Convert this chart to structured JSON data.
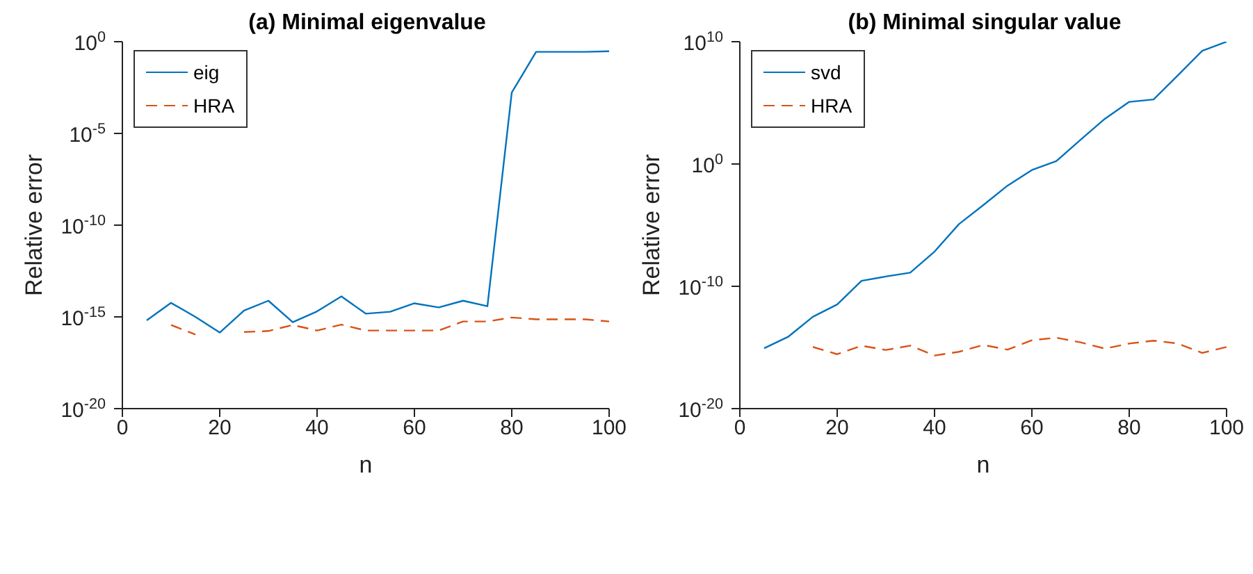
{
  "chart_data": [
    {
      "type": "line",
      "title": "(a) Minimal eigenvalue",
      "xlabel": "n",
      "ylabel": "Relative error",
      "log": "y",
      "grid": false,
      "legend": "top left",
      "x": [
        5,
        10,
        15,
        20,
        25,
        30,
        35,
        40,
        45,
        50,
        55,
        60,
        65,
        70,
        75,
        80,
        85,
        90,
        95,
        100
      ],
      "xlim": [
        0,
        100
      ],
      "xticks": [
        0,
        20,
        40,
        60,
        80,
        100
      ],
      "ylim": [
        1e-20,
        1
      ],
      "yticks": [
        {
          "value": 1e-20,
          "label": "10$^{-20}$"
        },
        {
          "value": 1e-15,
          "label": "10$^{-15}$"
        },
        {
          "value": 1e-10,
          "label": "10$^{-10}$"
        },
        {
          "value": 1e-05,
          "label": "10$^{-5}$"
        },
        {
          "value": 1,
          "label": "10$^{0}$"
        }
      ],
      "series": [
        {
          "name": "eig",
          "color": "#0072bd",
          "line_style": "solid",
          "values": [
            6.5e-16,
            5.8e-15,
            1e-15,
            1.4e-16,
            2.2e-15,
            7.6e-15,
            5.1e-16,
            2e-15,
            1.3e-14,
            1.5e-15,
            1.9e-15,
            5.5e-15,
            3.3e-15,
            7.6e-15,
            3.8e-15,
            0.0017,
            0.28,
            0.28,
            0.28,
            0.3
          ]
        },
        {
          "name": "HRA",
          "color": "#d95319",
          "line_style": "dashed",
          "values": [
            null,
            3.6e-16,
            1.1e-16,
            null,
            1.5e-16,
            1.7e-16,
            3.6e-16,
            1.8e-16,
            3.8e-16,
            1.8e-16,
            1.8e-16,
            1.8e-16,
            1.8e-16,
            5.6e-16,
            5.6e-16,
            9.3e-16,
            7.4e-16,
            7.4e-16,
            7.4e-16,
            5.6e-16
          ]
        }
      ]
    },
    {
      "type": "line",
      "title": "(b) Minimal singular value",
      "xlabel": "n",
      "ylabel": "Relative error",
      "log": "y",
      "grid": false,
      "legend": "top left",
      "x": [
        5,
        10,
        15,
        20,
        25,
        30,
        35,
        40,
        45,
        50,
        55,
        60,
        65,
        70,
        75,
        80,
        85,
        90,
        95,
        100
      ],
      "xlim": [
        0,
        100
      ],
      "xticks": [
        0,
        20,
        40,
        60,
        80,
        100
      ],
      "ylim": [
        1e-20,
        10000000000.0
      ],
      "yticks": [
        {
          "value": 1e-20,
          "label": "10$^{-20}$"
        },
        {
          "value": 1e-10,
          "label": "10$^{-10}$"
        },
        {
          "value": 1,
          "label": "10$^{0}$"
        },
        {
          "value": 10000000000.0,
          "label": "10$^{10}$"
        }
      ],
      "series": [
        {
          "name": "svd",
          "color": "#0072bd",
          "line_style": "solid",
          "values": [
            8.7e-16,
            7.8e-15,
            3.2e-13,
            3.3e-12,
            2.8e-10,
            6.3e-10,
            1.3e-09,
            6.9e-08,
            1.2e-05,
            0.00043,
            0.017,
            0.32,
            1.7,
            95,
            5000,
            120000.0,
            190000.0,
            18000000.0,
            1800000000.0,
            10000000000.0
          ]
        },
        {
          "name": "HRA",
          "color": "#d95319",
          "line_style": "dashed",
          "values": [
            null,
            null,
            1.1e-15,
            2.8e-16,
            1.4e-15,
            6.2e-16,
            1.4e-15,
            2.2e-16,
            4.4e-16,
            1.6e-15,
            6.6e-16,
            3.9e-15,
            6.3e-15,
            2.6e-15,
            8.1e-16,
            2.1e-15,
            3.6e-15,
            2.1e-15,
            3.6e-16,
            1.1e-15
          ]
        }
      ]
    }
  ]
}
